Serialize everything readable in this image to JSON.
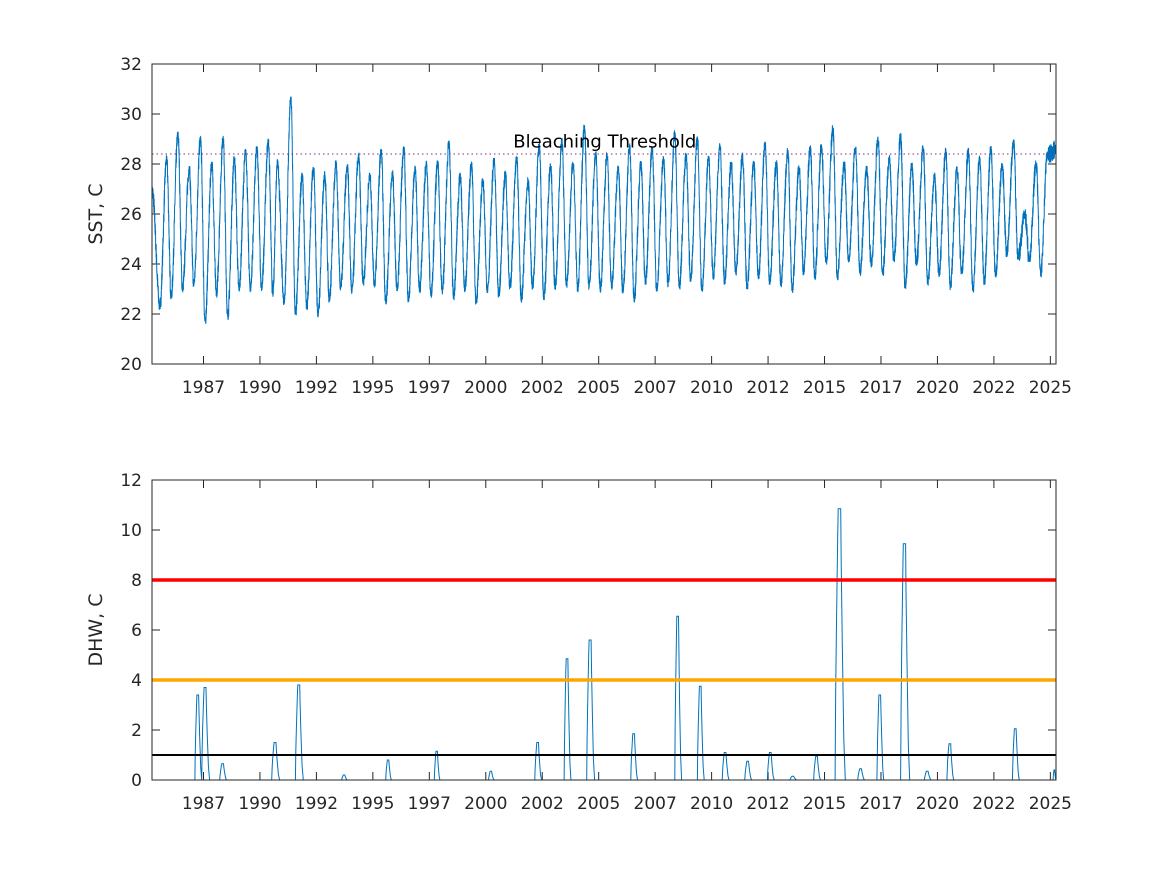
{
  "chart_data": [
    {
      "type": "line",
      "ylabel": "SST, C",
      "xlabel": "",
      "ylim": [
        20,
        32
      ],
      "yticks": [
        20,
        22,
        24,
        26,
        28,
        30,
        32
      ],
      "xlim": [
        1985.05,
        2025.08
      ],
      "xticks": [
        {
          "label": "1987",
          "value": 1987.33
        },
        {
          "label": "1990",
          "value": 1989.83
        },
        {
          "label": "1992",
          "value": 1992.33
        },
        {
          "label": "1995",
          "value": 1994.83
        },
        {
          "label": "1997",
          "value": 1997.33
        },
        {
          "label": "2000",
          "value": 1999.83
        },
        {
          "label": "2002",
          "value": 2002.33
        },
        {
          "label": "2005",
          "value": 2004.83
        },
        {
          "label": "2007",
          "value": 2007.33
        },
        {
          "label": "2010",
          "value": 2009.83
        },
        {
          "label": "2012",
          "value": 2012.33
        },
        {
          "label": "2015",
          "value": 2014.83
        },
        {
          "label": "2017",
          "value": 2017.33
        },
        {
          "label": "2020",
          "value": 2019.83
        },
        {
          "label": "2022",
          "value": 2022.33
        },
        {
          "label": "2025",
          "value": 2024.83
        }
      ],
      "series_color": "#0072BD",
      "annotation": {
        "text": "Bleaching Threshold",
        "x": 2005.1,
        "y": 28.9
      },
      "reference_lines": [
        {
          "y": 28.4,
          "color": "#7E2F8E",
          "style": "dotted"
        }
      ],
      "peaks": [
        [
          1985.7,
          28.2
        ],
        [
          1986.2,
          29.2
        ],
        [
          1986.7,
          27.8
        ],
        [
          1987.2,
          29.0
        ],
        [
          1987.7,
          28.0
        ],
        [
          1988.2,
          29.0
        ],
        [
          1988.7,
          28.2
        ],
        [
          1989.2,
          28.5
        ],
        [
          1989.7,
          28.6
        ],
        [
          1990.2,
          28.9
        ],
        [
          1990.6,
          28.1
        ],
        [
          1991.2,
          30.6
        ],
        [
          1991.7,
          27.5
        ],
        [
          1992.2,
          27.8
        ],
        [
          1992.7,
          27.6
        ],
        [
          1993.2,
          28.0
        ],
        [
          1993.7,
          27.9
        ],
        [
          1994.2,
          28.3
        ],
        [
          1994.7,
          27.5
        ],
        [
          1995.2,
          28.5
        ],
        [
          1995.7,
          27.6
        ],
        [
          1996.2,
          28.6
        ],
        [
          1996.7,
          27.8
        ],
        [
          1997.2,
          28.0
        ],
        [
          1997.7,
          28.0
        ],
        [
          1998.2,
          28.8
        ],
        [
          1998.7,
          27.5
        ],
        [
          1999.2,
          28.0
        ],
        [
          1999.7,
          27.3
        ],
        [
          2000.2,
          28.1
        ],
        [
          2000.7,
          27.6
        ],
        [
          2001.2,
          28.2
        ],
        [
          2001.7,
          27.3
        ],
        [
          2002.2,
          28.7
        ],
        [
          2002.7,
          27.9
        ],
        [
          2003.2,
          28.9
        ],
        [
          2003.7,
          28.0
        ],
        [
          2004.2,
          29.5
        ],
        [
          2004.7,
          28.4
        ],
        [
          2005.2,
          28.3
        ],
        [
          2005.7,
          27.8
        ],
        [
          2006.2,
          28.7
        ],
        [
          2006.7,
          28.0
        ],
        [
          2007.2,
          28.6
        ],
        [
          2007.7,
          28.2
        ],
        [
          2008.2,
          29.2
        ],
        [
          2008.7,
          28.3
        ],
        [
          2009.2,
          29.0
        ],
        [
          2009.7,
          28.2
        ],
        [
          2010.2,
          28.7
        ],
        [
          2010.7,
          28.0
        ],
        [
          2011.2,
          28.3
        ],
        [
          2011.7,
          28.0
        ],
        [
          2012.2,
          28.8
        ],
        [
          2012.7,
          28.0
        ],
        [
          2013.2,
          28.5
        ],
        [
          2013.7,
          27.8
        ],
        [
          2014.2,
          28.6
        ],
        [
          2014.7,
          28.7
        ],
        [
          2015.2,
          29.4
        ],
        [
          2015.7,
          28.0
        ],
        [
          2016.2,
          28.6
        ],
        [
          2016.7,
          27.8
        ],
        [
          2017.2,
          29.0
        ],
        [
          2017.7,
          28.2
        ],
        [
          2018.2,
          29.1
        ],
        [
          2018.7,
          27.9
        ],
        [
          2019.2,
          28.6
        ],
        [
          2019.7,
          27.5
        ],
        [
          2020.2,
          28.5
        ],
        [
          2020.7,
          27.8
        ],
        [
          2021.2,
          28.5
        ],
        [
          2021.7,
          28.2
        ],
        [
          2022.2,
          28.6
        ],
        [
          2022.7,
          27.9
        ],
        [
          2023.2,
          28.9
        ],
        [
          2023.7,
          26.0
        ],
        [
          2024.2,
          28.0
        ],
        [
          2024.7,
          28.4
        ]
      ],
      "troughs": [
        [
          1985.05,
          27.0
        ],
        [
          1985.4,
          22.3
        ],
        [
          1985.9,
          22.7
        ],
        [
          1986.4,
          23.0
        ],
        [
          1986.9,
          23.2
        ],
        [
          1987.4,
          21.7
        ],
        [
          1987.9,
          22.8
        ],
        [
          1988.4,
          21.9
        ],
        [
          1988.9,
          23.0
        ],
        [
          1989.4,
          23.0
        ],
        [
          1989.9,
          23.0
        ],
        [
          1990.4,
          22.8
        ],
        [
          1990.9,
          22.5
        ],
        [
          1991.4,
          22.0
        ],
        [
          1991.9,
          22.3
        ],
        [
          1992.4,
          22.0
        ],
        [
          1992.9,
          22.6
        ],
        [
          1993.4,
          23.1
        ],
        [
          1993.9,
          22.9
        ],
        [
          1994.4,
          23.3
        ],
        [
          1994.9,
          23.2
        ],
        [
          1995.4,
          22.5
        ],
        [
          1995.9,
          23.0
        ],
        [
          1996.4,
          22.6
        ],
        [
          1996.9,
          23.0
        ],
        [
          1997.4,
          22.8
        ],
        [
          1997.9,
          22.9
        ],
        [
          1998.4,
          22.7
        ],
        [
          1998.9,
          23.0
        ],
        [
          1999.4,
          22.5
        ],
        [
          1999.9,
          23.0
        ],
        [
          2000.4,
          22.8
        ],
        [
          2000.9,
          23.1
        ],
        [
          2001.4,
          22.6
        ],
        [
          2001.9,
          23.1
        ],
        [
          2002.4,
          22.7
        ],
        [
          2002.9,
          23.1
        ],
        [
          2003.4,
          23.2
        ],
        [
          2003.9,
          23.0
        ],
        [
          2004.4,
          23.1
        ],
        [
          2004.9,
          23.0
        ],
        [
          2005.4,
          23.1
        ],
        [
          2005.9,
          22.9
        ],
        [
          2006.4,
          22.6
        ],
        [
          2006.9,
          23.3
        ],
        [
          2007.4,
          23.0
        ],
        [
          2007.9,
          23.2
        ],
        [
          2008.4,
          23.1
        ],
        [
          2008.9,
          23.4
        ],
        [
          2009.4,
          23.0
        ],
        [
          2009.9,
          23.5
        ],
        [
          2010.4,
          23.3
        ],
        [
          2010.9,
          23.7
        ],
        [
          2011.4,
          23.1
        ],
        [
          2011.9,
          23.5
        ],
        [
          2012.4,
          23.3
        ],
        [
          2012.9,
          23.2
        ],
        [
          2013.4,
          23.0
        ],
        [
          2013.9,
          23.7
        ],
        [
          2014.4,
          23.5
        ],
        [
          2014.9,
          24.1
        ],
        [
          2015.4,
          23.5
        ],
        [
          2015.9,
          24.2
        ],
        [
          2016.4,
          23.7
        ],
        [
          2016.9,
          24.0
        ],
        [
          2017.4,
          23.6
        ],
        [
          2017.9,
          24.2
        ],
        [
          2018.4,
          23.1
        ],
        [
          2018.9,
          24.0
        ],
        [
          2019.4,
          23.3
        ],
        [
          2019.9,
          23.6
        ],
        [
          2020.4,
          23.1
        ],
        [
          2020.9,
          23.6
        ],
        [
          2021.4,
          23.0
        ],
        [
          2021.9,
          23.3
        ],
        [
          2022.4,
          23.6
        ],
        [
          2022.9,
          24.4
        ],
        [
          2023.4,
          24.3
        ],
        [
          2023.9,
          24.2
        ],
        [
          2024.4,
          23.6
        ],
        [
          2025.08,
          28.6
        ]
      ]
    },
    {
      "type": "line",
      "ylabel": "DHW, C",
      "xlabel": "",
      "ylim": [
        0,
        12
      ],
      "yticks": [
        0,
        2,
        4,
        6,
        8,
        10,
        12
      ],
      "xlim": [
        1985.05,
        2025.08
      ],
      "xticks": [
        {
          "label": "1987",
          "value": 1987.33
        },
        {
          "label": "1990",
          "value": 1989.83
        },
        {
          "label": "1992",
          "value": 1992.33
        },
        {
          "label": "1995",
          "value": 1994.83
        },
        {
          "label": "1997",
          "value": 1997.33
        },
        {
          "label": "2000",
          "value": 1999.83
        },
        {
          "label": "2002",
          "value": 2002.33
        },
        {
          "label": "2005",
          "value": 2004.83
        },
        {
          "label": "2007",
          "value": 2007.33
        },
        {
          "label": "2010",
          "value": 2009.83
        },
        {
          "label": "2012",
          "value": 2012.33
        },
        {
          "label": "2015",
          "value": 2014.83
        },
        {
          "label": "2017",
          "value": 2017.33
        },
        {
          "label": "2020",
          "value": 2019.83
        },
        {
          "label": "2022",
          "value": 2022.33
        },
        {
          "label": "2025",
          "value": 2024.83
        }
      ],
      "series_color": "#0072BD",
      "reference_lines": [
        {
          "y": 8,
          "color": "#FF0000"
        },
        {
          "y": 4,
          "color": "#FFA500"
        },
        {
          "y": 1,
          "color": "#000000"
        }
      ],
      "events": [
        {
          "start": 1986.95,
          "peak": 3.4,
          "end": 1987.25
        },
        {
          "start": 1987.25,
          "peak": 3.7,
          "end": 1987.6
        },
        {
          "start": 1988.05,
          "peak": 0.65,
          "end": 1988.35
        },
        {
          "start": 1990.35,
          "peak": 1.5,
          "end": 1990.7
        },
        {
          "start": 1991.4,
          "peak": 3.8,
          "end": 1991.75
        },
        {
          "start": 1993.45,
          "peak": 0.2,
          "end": 1993.7
        },
        {
          "start": 1995.4,
          "peak": 0.8,
          "end": 1995.65
        },
        {
          "start": 1997.55,
          "peak": 1.15,
          "end": 1997.8
        },
        {
          "start": 1999.95,
          "peak": 0.35,
          "end": 2000.2
        },
        {
          "start": 2002.0,
          "peak": 1.5,
          "end": 2002.3
        },
        {
          "start": 2003.3,
          "peak": 4.85,
          "end": 2003.6
        },
        {
          "start": 2004.3,
          "peak": 5.6,
          "end": 2004.65
        },
        {
          "start": 2006.25,
          "peak": 1.85,
          "end": 2006.55
        },
        {
          "start": 2008.2,
          "peak": 6.55,
          "end": 2008.5
        },
        {
          "start": 2009.2,
          "peak": 3.75,
          "end": 2009.5
        },
        {
          "start": 2010.3,
          "peak": 1.1,
          "end": 2010.6
        },
        {
          "start": 2011.3,
          "peak": 0.75,
          "end": 2011.6
        },
        {
          "start": 2012.3,
          "peak": 1.1,
          "end": 2012.6
        },
        {
          "start": 2013.3,
          "peak": 0.15,
          "end": 2013.6
        },
        {
          "start": 2014.35,
          "peak": 0.95,
          "end": 2014.65
        },
        {
          "start": 2015.3,
          "peak": 10.85,
          "end": 2015.75
        },
        {
          "start": 2016.3,
          "peak": 0.45,
          "end": 2016.6
        },
        {
          "start": 2017.15,
          "peak": 3.4,
          "end": 2017.45
        },
        {
          "start": 2018.2,
          "peak": 9.45,
          "end": 2018.6
        },
        {
          "start": 2019.25,
          "peak": 0.35,
          "end": 2019.55
        },
        {
          "start": 2020.25,
          "peak": 1.45,
          "end": 2020.55
        },
        {
          "start": 2023.15,
          "peak": 2.05,
          "end": 2023.45
        },
        {
          "start": 2024.95,
          "peak": 0.4,
          "end": 2025.08
        }
      ]
    }
  ]
}
